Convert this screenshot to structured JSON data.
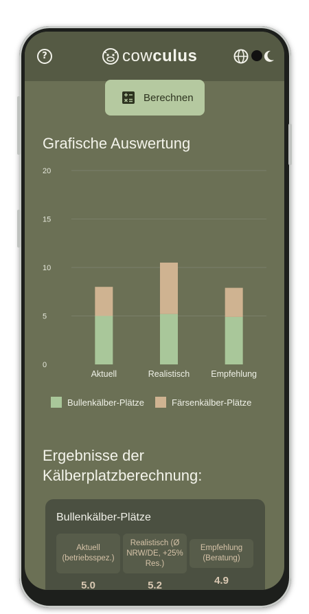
{
  "header": {
    "help_icon": "help-circle-icon",
    "logo_text_light": "cow",
    "logo_text_bold": "culus",
    "globe_icon": "globe-icon",
    "theme_icon": "moon-icon"
  },
  "calculate_button": {
    "label": "Berechnen",
    "icon": "calculator-icon"
  },
  "chart_section": {
    "title": "Grafische Auswertung"
  },
  "chart_data": {
    "type": "bar",
    "stacked": true,
    "categories": [
      "Aktuell",
      "Realistisch",
      "Empfehlung"
    ],
    "series": [
      {
        "name": "Bullenkälber-Plätze",
        "values": [
          5.0,
          5.2,
          4.9
        ],
        "color": "#a9c79a"
      },
      {
        "name": "Färsenkälber-Plätze",
        "values": [
          3.0,
          5.3,
          3.0
        ],
        "color": "#cfb391"
      }
    ],
    "ylim": [
      0,
      20
    ],
    "yticks": [
      "0",
      "5",
      "10",
      "15",
      "20"
    ],
    "grid": true,
    "legend": "bottom"
  },
  "results": {
    "title": "Ergebnisse der Kälberplatzberechnung:",
    "card_title": "Bullenkälber-Plätze",
    "columns": [
      {
        "header": "Aktuell (betriebsspez.)",
        "value": "5.0"
      },
      {
        "header": "Realistisch (Ø NRW/DE, +25% Res.)",
        "value": "5.2"
      },
      {
        "header": "Empfehlung (Beratung)",
        "value": "4.9"
      }
    ]
  }
}
